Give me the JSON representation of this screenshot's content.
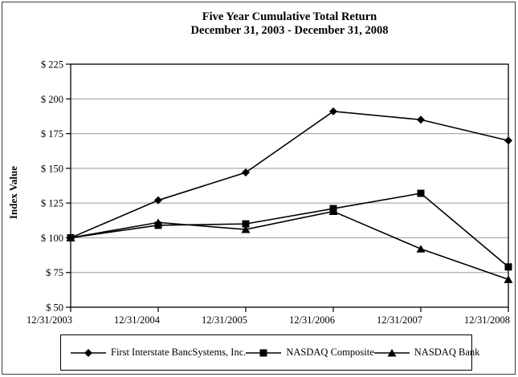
{
  "chart_data": {
    "type": "line",
    "title": "Five Year Cumulative Total Return",
    "subtitle": "December 31, 2003 - December 31, 2008",
    "xlabel": "",
    "ylabel": "Index Value",
    "x_categories": [
      "12/31/2003",
      "12/31/2004",
      "12/31/2005",
      "12/31/2006",
      "12/31/2007",
      "12/31/2008"
    ],
    "y_ticks": [
      225,
      200,
      175,
      150,
      125,
      100,
      75,
      50
    ],
    "y_tick_prefix": "$ ",
    "ylim": [
      50,
      225
    ],
    "grid": true,
    "legend_position": "bottom",
    "series": [
      {
        "name": "First Interstate BancSystems, Inc.",
        "marker": "diamond",
        "values": [
          100,
          127,
          147,
          191,
          185,
          170
        ]
      },
      {
        "name": "NASDAQ Composite",
        "marker": "square",
        "values": [
          100,
          109,
          110,
          121,
          132,
          79
        ]
      },
      {
        "name": "NASDAQ Bank",
        "marker": "triangle",
        "values": [
          100,
          111,
          106,
          119,
          92,
          70
        ]
      }
    ]
  },
  "colors": {
    "series_line": "#000000",
    "marker_fill": "#000000",
    "grid": "#999999",
    "axis": "#000000",
    "outer_frame": "#3a3a3a",
    "background": "#ffffff"
  }
}
